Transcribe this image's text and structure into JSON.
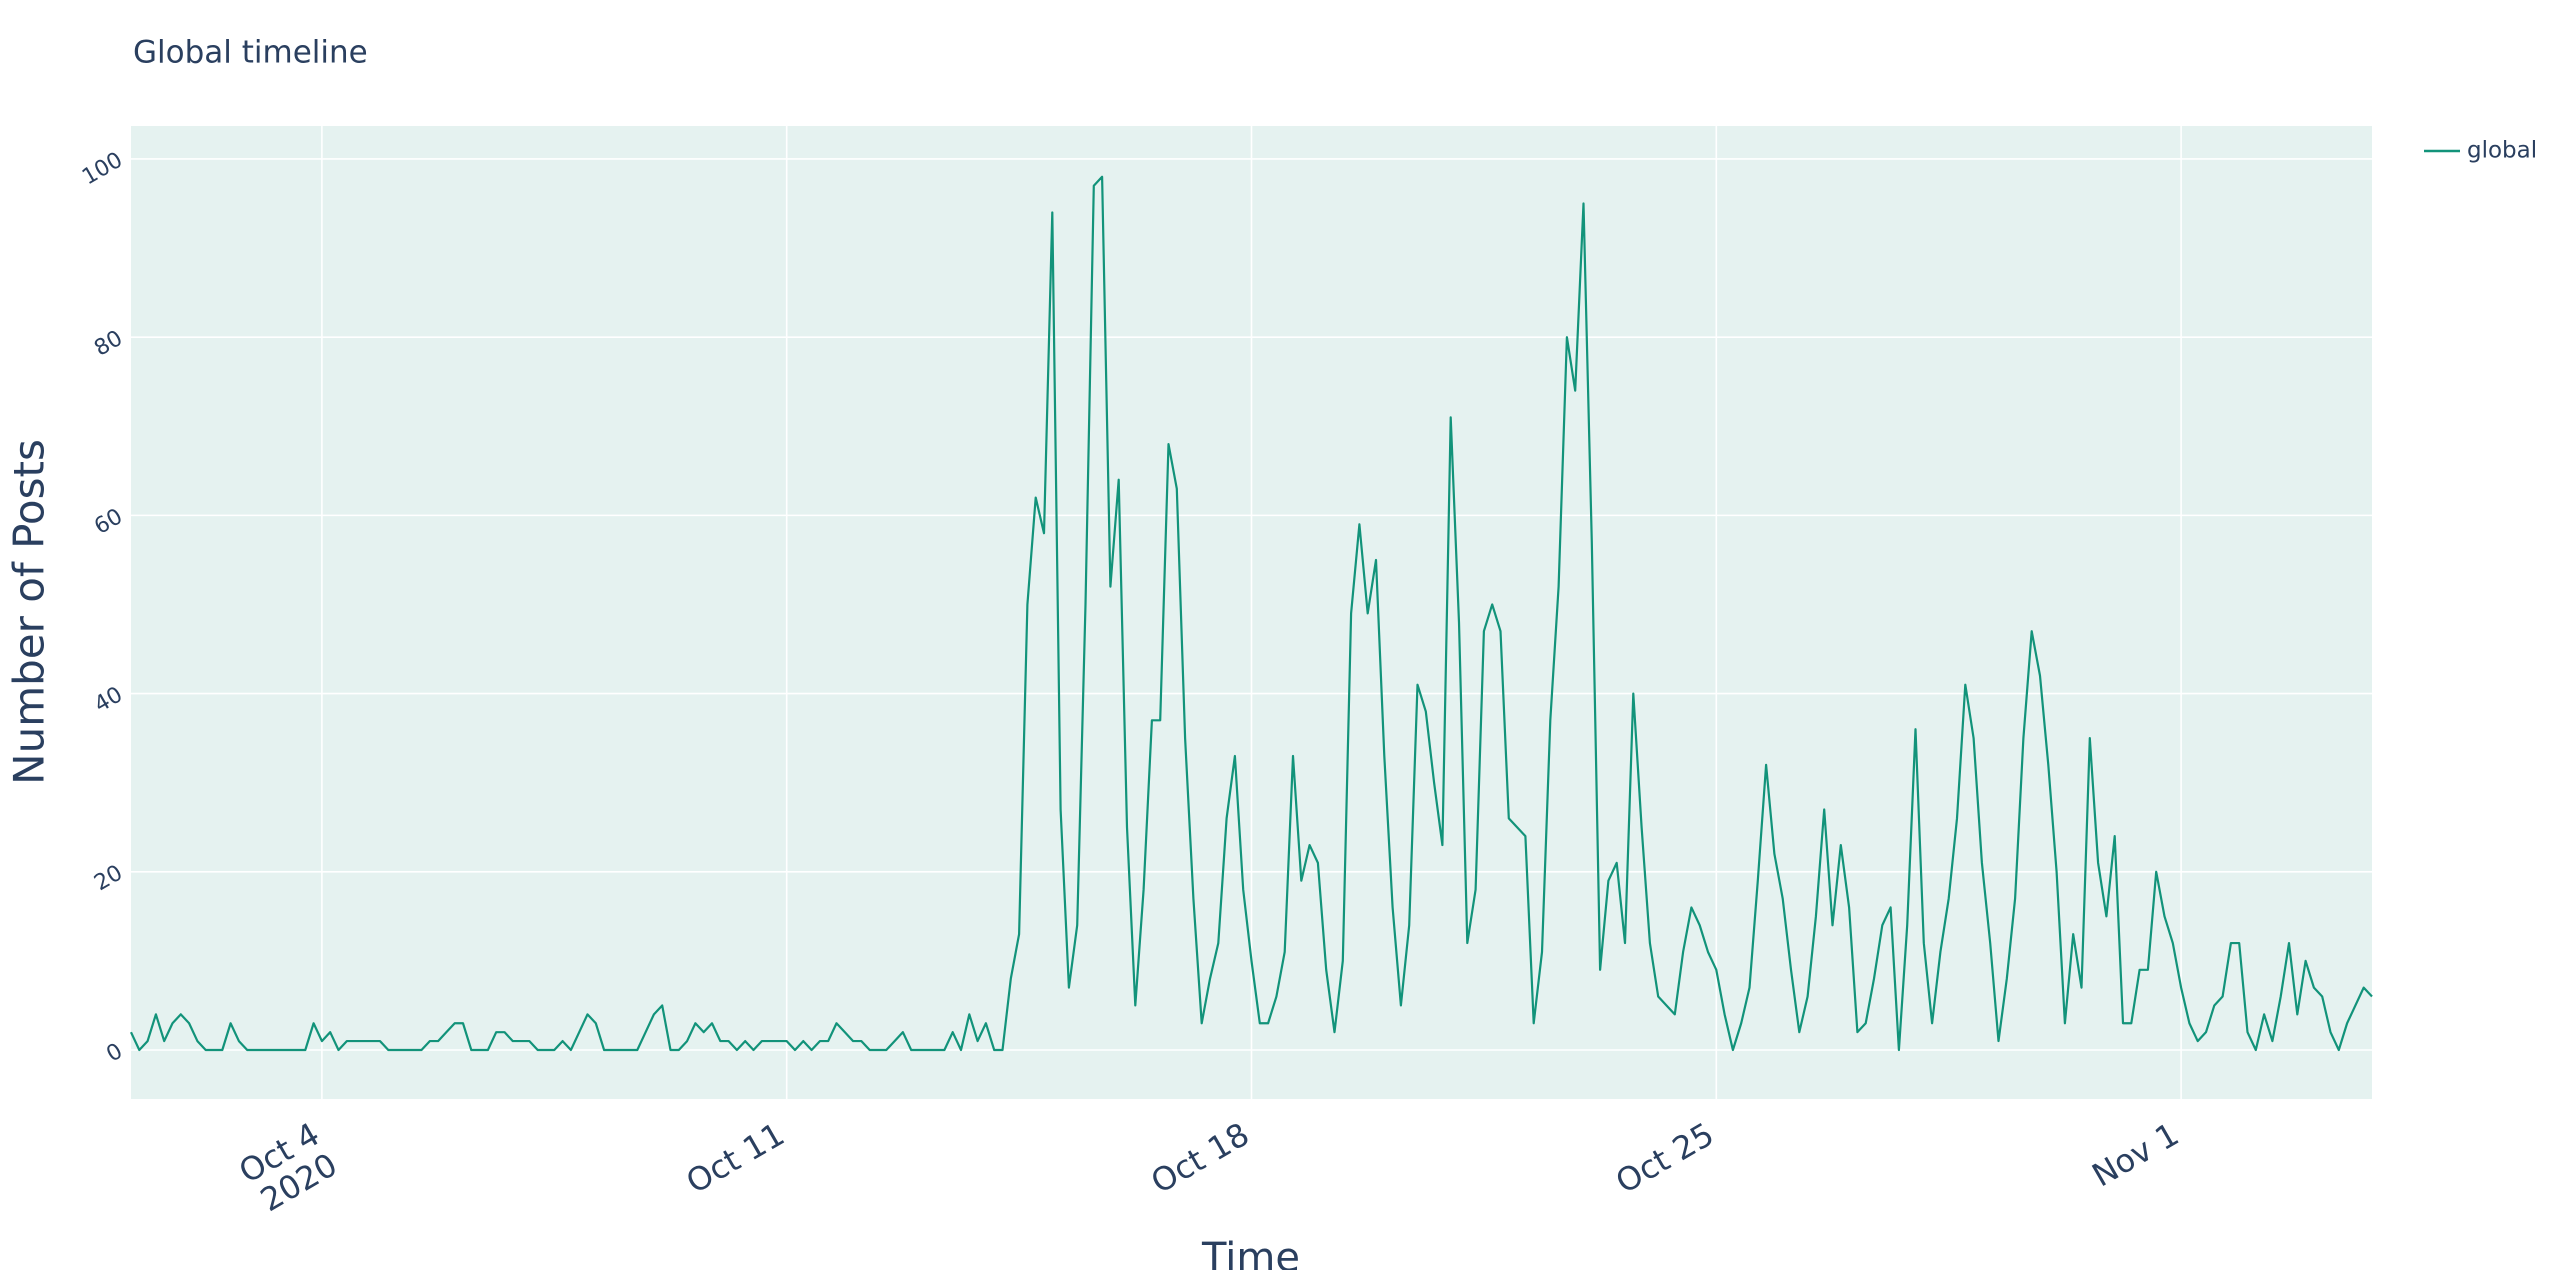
{
  "chart_data": {
    "type": "line",
    "title": "Global timeline",
    "x_label": "Time",
    "y_label": "Number of Posts",
    "x": [
      "2020-10-01T03:00",
      "2020-10-01T06:00",
      "2020-10-01T09:00",
      "2020-10-01T12:00",
      "2020-10-01T15:00",
      "2020-10-01T18:00",
      "2020-10-01T21:00",
      "2020-10-02T00:00",
      "2020-10-02T03:00",
      "2020-10-02T06:00",
      "2020-10-02T09:00",
      "2020-10-02T12:00",
      "2020-10-02T15:00",
      "2020-10-02T18:00",
      "2020-10-02T21:00",
      "2020-10-03T00:00",
      "2020-10-03T03:00",
      "2020-10-03T06:00",
      "2020-10-03T09:00",
      "2020-10-03T12:00",
      "2020-10-03T15:00",
      "2020-10-03T18:00",
      "2020-10-03T21:00",
      "2020-10-04T00:00",
      "2020-10-04T03:00",
      "2020-10-04T06:00",
      "2020-10-04T09:00",
      "2020-10-04T12:00",
      "2020-10-04T15:00",
      "2020-10-04T18:00",
      "2020-10-04T21:00",
      "2020-10-05T00:00",
      "2020-10-05T03:00",
      "2020-10-05T06:00",
      "2020-10-05T09:00",
      "2020-10-05T12:00",
      "2020-10-05T15:00",
      "2020-10-05T18:00",
      "2020-10-05T21:00",
      "2020-10-06T00:00",
      "2020-10-06T03:00",
      "2020-10-06T06:00",
      "2020-10-06T09:00",
      "2020-10-06T12:00",
      "2020-10-06T15:00",
      "2020-10-06T18:00",
      "2020-10-06T21:00",
      "2020-10-07T00:00",
      "2020-10-07T03:00",
      "2020-10-07T06:00",
      "2020-10-07T09:00",
      "2020-10-07T12:00",
      "2020-10-07T15:00",
      "2020-10-07T18:00",
      "2020-10-07T21:00",
      "2020-10-08T00:00",
      "2020-10-08T03:00",
      "2020-10-08T06:00",
      "2020-10-08T09:00",
      "2020-10-08T12:00",
      "2020-10-08T15:00",
      "2020-10-08T18:00",
      "2020-10-08T21:00",
      "2020-10-09T00:00",
      "2020-10-09T03:00",
      "2020-10-09T06:00",
      "2020-10-09T09:00",
      "2020-10-09T12:00",
      "2020-10-09T15:00",
      "2020-10-09T18:00",
      "2020-10-09T21:00",
      "2020-10-10T00:00",
      "2020-10-10T03:00",
      "2020-10-10T06:00",
      "2020-10-10T09:00",
      "2020-10-10T12:00",
      "2020-10-10T15:00",
      "2020-10-10T18:00",
      "2020-10-10T21:00",
      "2020-10-11T00:00",
      "2020-10-11T03:00",
      "2020-10-11T06:00",
      "2020-10-11T09:00",
      "2020-10-11T12:00",
      "2020-10-11T15:00",
      "2020-10-11T18:00",
      "2020-10-11T21:00",
      "2020-10-12T00:00",
      "2020-10-12T03:00",
      "2020-10-12T06:00",
      "2020-10-12T09:00",
      "2020-10-12T12:00",
      "2020-10-12T15:00",
      "2020-10-12T18:00",
      "2020-10-12T21:00",
      "2020-10-13T00:00",
      "2020-10-13T03:00",
      "2020-10-13T06:00",
      "2020-10-13T09:00",
      "2020-10-13T12:00",
      "2020-10-13T15:00",
      "2020-10-13T18:00",
      "2020-10-13T21:00",
      "2020-10-14T00:00",
      "2020-10-14T03:00",
      "2020-10-14T06:00",
      "2020-10-14T09:00",
      "2020-10-14T12:00",
      "2020-10-14T15:00",
      "2020-10-14T18:00",
      "2020-10-14T21:00",
      "2020-10-15T00:00",
      "2020-10-15T03:00",
      "2020-10-15T06:00",
      "2020-10-15T09:00",
      "2020-10-15T12:00",
      "2020-10-15T15:00",
      "2020-10-15T18:00",
      "2020-10-15T21:00",
      "2020-10-16T00:00",
      "2020-10-16T03:00",
      "2020-10-16T06:00",
      "2020-10-16T09:00",
      "2020-10-16T12:00",
      "2020-10-16T15:00",
      "2020-10-16T18:00",
      "2020-10-16T21:00",
      "2020-10-17T00:00",
      "2020-10-17T03:00",
      "2020-10-17T06:00",
      "2020-10-17T09:00",
      "2020-10-17T12:00",
      "2020-10-17T15:00",
      "2020-10-17T18:00",
      "2020-10-17T21:00",
      "2020-10-18T00:00",
      "2020-10-18T03:00",
      "2020-10-18T06:00",
      "2020-10-18T09:00",
      "2020-10-18T12:00",
      "2020-10-18T15:00",
      "2020-10-18T18:00",
      "2020-10-18T21:00",
      "2020-10-19T00:00",
      "2020-10-19T03:00",
      "2020-10-19T06:00",
      "2020-10-19T09:00",
      "2020-10-19T12:00",
      "2020-10-19T15:00",
      "2020-10-19T18:00",
      "2020-10-19T21:00",
      "2020-10-20T00:00",
      "2020-10-20T03:00",
      "2020-10-20T06:00",
      "2020-10-20T09:00",
      "2020-10-20T12:00",
      "2020-10-20T15:00",
      "2020-10-20T18:00",
      "2020-10-20T21:00",
      "2020-10-21T00:00",
      "2020-10-21T03:00",
      "2020-10-21T06:00",
      "2020-10-21T09:00",
      "2020-10-21T12:00",
      "2020-10-21T15:00",
      "2020-10-21T18:00",
      "2020-10-21T21:00",
      "2020-10-22T00:00",
      "2020-10-22T03:00",
      "2020-10-22T06:00",
      "2020-10-22T09:00",
      "2020-10-22T12:00",
      "2020-10-22T15:00",
      "2020-10-22T18:00",
      "2020-10-22T21:00",
      "2020-10-23T00:00",
      "2020-10-23T03:00",
      "2020-10-23T06:00",
      "2020-10-23T09:00",
      "2020-10-23T12:00",
      "2020-10-23T15:00",
      "2020-10-23T18:00",
      "2020-10-23T21:00",
      "2020-10-24T00:00",
      "2020-10-24T03:00",
      "2020-10-24T06:00",
      "2020-10-24T09:00",
      "2020-10-24T12:00",
      "2020-10-24T15:00",
      "2020-10-24T18:00",
      "2020-10-24T21:00",
      "2020-10-25T00:00",
      "2020-10-25T03:00",
      "2020-10-25T06:00",
      "2020-10-25T09:00",
      "2020-10-25T12:00",
      "2020-10-25T15:00",
      "2020-10-25T18:00",
      "2020-10-25T21:00",
      "2020-10-26T00:00",
      "2020-10-26T03:00",
      "2020-10-26T06:00",
      "2020-10-26T09:00",
      "2020-10-26T12:00",
      "2020-10-26T15:00",
      "2020-10-26T18:00",
      "2020-10-26T21:00",
      "2020-10-27T00:00",
      "2020-10-27T03:00",
      "2020-10-27T06:00",
      "2020-10-27T09:00",
      "2020-10-27T12:00",
      "2020-10-27T15:00",
      "2020-10-27T18:00",
      "2020-10-27T21:00",
      "2020-10-28T00:00",
      "2020-10-28T03:00",
      "2020-10-28T06:00",
      "2020-10-28T09:00",
      "2020-10-28T12:00",
      "2020-10-28T15:00",
      "2020-10-28T18:00",
      "2020-10-28T21:00",
      "2020-10-29T00:00",
      "2020-10-29T03:00",
      "2020-10-29T06:00",
      "2020-10-29T09:00",
      "2020-10-29T12:00",
      "2020-10-29T15:00",
      "2020-10-29T18:00",
      "2020-10-29T21:00",
      "2020-10-30T00:00",
      "2020-10-30T03:00",
      "2020-10-30T06:00",
      "2020-10-30T09:00",
      "2020-10-30T12:00",
      "2020-10-30T15:00",
      "2020-10-30T18:00",
      "2020-10-30T21:00",
      "2020-10-31T00:00",
      "2020-10-31T03:00",
      "2020-10-31T06:00",
      "2020-10-31T09:00",
      "2020-10-31T12:00",
      "2020-10-31T15:00",
      "2020-10-31T18:00",
      "2020-10-31T21:00",
      "2020-11-01T00:00",
      "2020-11-01T03:00",
      "2020-11-01T06:00",
      "2020-11-01T09:00",
      "2020-11-01T12:00",
      "2020-11-01T15:00",
      "2020-11-01T18:00",
      "2020-11-01T21:00",
      "2020-11-02T00:00",
      "2020-11-02T03:00",
      "2020-11-02T06:00",
      "2020-11-02T09:00",
      "2020-11-02T12:00",
      "2020-11-02T15:00",
      "2020-11-02T18:00",
      "2020-11-02T21:00",
      "2020-11-03T00:00",
      "2020-11-03T03:00",
      "2020-11-03T06:00",
      "2020-11-03T09:00",
      "2020-11-03T12:00",
      "2020-11-03T15:00",
      "2020-11-03T18:00",
      "2020-11-03T21:00"
    ],
    "series": [
      {
        "name": "global",
        "color": "#12937a",
        "values": [
          2,
          0,
          1,
          4,
          1,
          3,
          4,
          3,
          1,
          0,
          0,
          0,
          3,
          1,
          0,
          0,
          0,
          0,
          0,
          0,
          0,
          0,
          3,
          1,
          2,
          0,
          1,
          1,
          1,
          1,
          1,
          0,
          0,
          0,
          0,
          0,
          1,
          1,
          2,
          3,
          3,
          0,
          0,
          0,
          2,
          2,
          1,
          1,
          1,
          0,
          0,
          0,
          1,
          0,
          2,
          4,
          3,
          0,
          0,
          0,
          0,
          0,
          2,
          4,
          5,
          0,
          0,
          1,
          3,
          2,
          3,
          1,
          1,
          0,
          1,
          0,
          1,
          1,
          1,
          1,
          0,
          1,
          0,
          1,
          1,
          3,
          2,
          1,
          1,
          0,
          0,
          0,
          1,
          2,
          0,
          0,
          0,
          0,
          0,
          2,
          0,
          4,
          1,
          3,
          0,
          0,
          8,
          13,
          50,
          62,
          58,
          94,
          27,
          7,
          14,
          50,
          97,
          98,
          52,
          64,
          25,
          5,
          18,
          37,
          37,
          68,
          63,
          35,
          17,
          3,
          8,
          12,
          26,
          33,
          18,
          10,
          3,
          3,
          6,
          11,
          33,
          19,
          23,
          21,
          9,
          2,
          10,
          49,
          59,
          49,
          55,
          33,
          16,
          5,
          14,
          41,
          38,
          30,
          23,
          71,
          48,
          12,
          18,
          47,
          50,
          47,
          26,
          25,
          24,
          3,
          11,
          37,
          52,
          80,
          74,
          95,
          57,
          9,
          19,
          21,
          12,
          40,
          25,
          12,
          6,
          5,
          4,
          11,
          16,
          14,
          11,
          9,
          4,
          0,
          3,
          7,
          19,
          32,
          22,
          17,
          9,
          2,
          6,
          15,
          27,
          14,
          23,
          16,
          2,
          3,
          8,
          14,
          16,
          0,
          14,
          36,
          12,
          3,
          11,
          17,
          26,
          41,
          35,
          21,
          12,
          1,
          8,
          17,
          35,
          47,
          42,
          32,
          20,
          3,
          13,
          7,
          35,
          21,
          15,
          24,
          3,
          3,
          9,
          9,
          20,
          15,
          12,
          7,
          3,
          1,
          2,
          5,
          6,
          12,
          12,
          2,
          0,
          4,
          1,
          6,
          12,
          4,
          10,
          7,
          6,
          2,
          0,
          3,
          5,
          7,
          6
        ]
      }
    ],
    "xlim": [
      "2020-10-01T03:00",
      "2020-11-03T21:00"
    ],
    "xticks": [
      {
        "value": "2020-10-04T00:00",
        "label": "Oct 4\n2020"
      },
      {
        "value": "2020-10-11T00:00",
        "label": "Oct 11"
      },
      {
        "value": "2020-10-18T00:00",
        "label": "Oct 18"
      },
      {
        "value": "2020-10-25T00:00",
        "label": "Oct 25"
      },
      {
        "value": "2020-11-01T00:00",
        "label": "Nov 1"
      }
    ],
    "ylim": [
      -5.5,
      103.7
    ],
    "yticks": [
      0,
      20,
      40,
      60,
      80,
      100
    ],
    "grid": true,
    "legend": "right"
  }
}
